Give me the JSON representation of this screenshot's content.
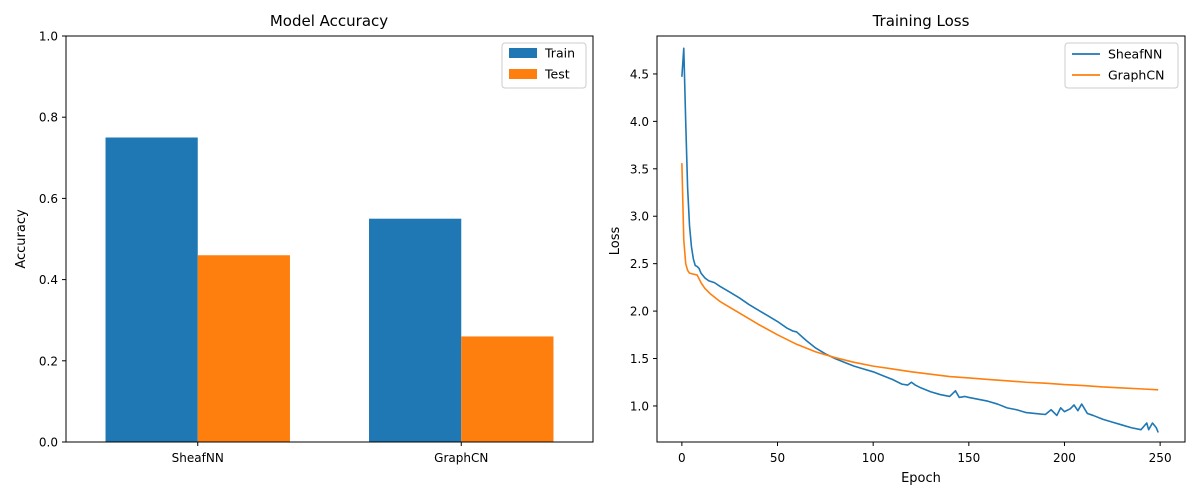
{
  "chart_data": [
    {
      "type": "bar",
      "title": "Model Accuracy",
      "xlabel": "",
      "ylabel": "Accuracy",
      "categories": [
        "SheafNN",
        "GraphCN"
      ],
      "ylim": [
        0,
        1.0
      ],
      "yticks": [
        "0.0",
        "0.2",
        "0.4",
        "0.6",
        "0.8",
        "1.0"
      ],
      "series": [
        {
          "name": "Train",
          "color": "#1f77b4",
          "values": [
            0.75,
            0.55
          ]
        },
        {
          "name": "Test",
          "color": "#ff7f0e",
          "values": [
            0.46,
            0.26
          ]
        }
      ],
      "legend": "top-right",
      "grid": false
    },
    {
      "type": "line",
      "title": "Training Loss",
      "xlabel": "Epoch",
      "ylabel": "Loss",
      "xlim": [
        -13,
        263
      ],
      "ylim": [
        0.62,
        4.9
      ],
      "xticks": [
        "0",
        "50",
        "100",
        "150",
        "200",
        "250"
      ],
      "yticks": [
        "1.0",
        "1.5",
        "2.0",
        "2.5",
        "3.0",
        "3.5",
        "4.0",
        "4.5"
      ],
      "legend": "top-right",
      "grid": false,
      "series": [
        {
          "name": "SheafNN",
          "color": "#1f77b4",
          "x": [
            0,
            1,
            2,
            3,
            4,
            5,
            6,
            7,
            8,
            9,
            10,
            12,
            14,
            17,
            20,
            25,
            30,
            35,
            40,
            45,
            50,
            55,
            58,
            60,
            65,
            70,
            75,
            80,
            85,
            90,
            95,
            100,
            105,
            110,
            115,
            118,
            120,
            122,
            125,
            130,
            135,
            140,
            143,
            145,
            148,
            150,
            155,
            160,
            165,
            170,
            175,
            180,
            185,
            190,
            193,
            196,
            198,
            200,
            203,
            205,
            207,
            209,
            212,
            215,
            220,
            225,
            230,
            235,
            240,
            243,
            244,
            246,
            248,
            249
          ],
          "y": [
            4.47,
            4.77,
            4.0,
            3.3,
            2.9,
            2.68,
            2.55,
            2.48,
            2.47,
            2.45,
            2.4,
            2.35,
            2.32,
            2.3,
            2.26,
            2.2,
            2.14,
            2.07,
            2.01,
            1.95,
            1.89,
            1.82,
            1.79,
            1.78,
            1.69,
            1.61,
            1.55,
            1.5,
            1.46,
            1.42,
            1.39,
            1.36,
            1.32,
            1.28,
            1.23,
            1.22,
            1.25,
            1.22,
            1.19,
            1.15,
            1.12,
            1.1,
            1.16,
            1.09,
            1.1,
            1.09,
            1.07,
            1.05,
            1.02,
            0.98,
            0.96,
            0.93,
            0.92,
            0.91,
            0.96,
            0.9,
            0.98,
            0.94,
            0.97,
            1.01,
            0.95,
            1.02,
            0.92,
            0.9,
            0.86,
            0.83,
            0.8,
            0.77,
            0.75,
            0.82,
            0.75,
            0.82,
            0.77,
            0.72
          ]
        },
        {
          "name": "GraphCN",
          "color": "#ff7f0e",
          "x": [
            0,
            1,
            2,
            3,
            4,
            6,
            8,
            10,
            12,
            15,
            20,
            25,
            30,
            40,
            50,
            60,
            70,
            80,
            90,
            100,
            110,
            120,
            130,
            140,
            150,
            160,
            170,
            180,
            190,
            200,
            210,
            220,
            230,
            240,
            249
          ],
          "y": [
            3.56,
            2.75,
            2.5,
            2.43,
            2.4,
            2.39,
            2.38,
            2.3,
            2.24,
            2.18,
            2.1,
            2.04,
            1.98,
            1.86,
            1.75,
            1.65,
            1.57,
            1.51,
            1.46,
            1.42,
            1.39,
            1.36,
            1.335,
            1.31,
            1.295,
            1.28,
            1.265,
            1.25,
            1.24,
            1.225,
            1.215,
            1.2,
            1.19,
            1.18,
            1.17
          ]
        }
      ]
    }
  ]
}
